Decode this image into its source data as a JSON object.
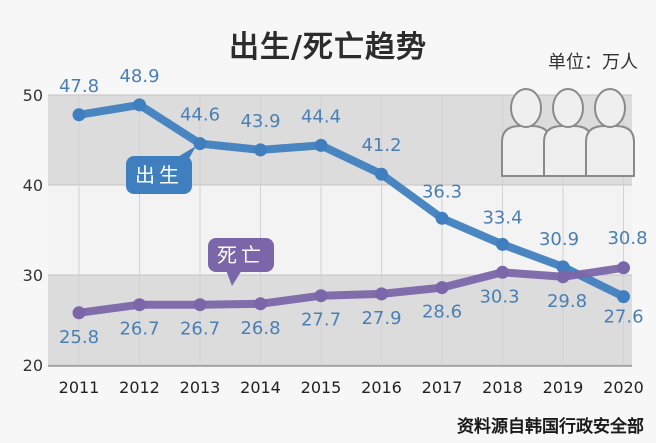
{
  "chart_data": {
    "type": "line",
    "title": "出生/死亡趋势",
    "unit": "单位：万人",
    "source": "资料源自韩国行政安全部",
    "x": [
      "2011",
      "2012",
      "2013",
      "2014",
      "2015",
      "2016",
      "2017",
      "2018",
      "2019",
      "2020"
    ],
    "y_ticks": [
      "20",
      "30",
      "40",
      "50"
    ],
    "ylim": [
      20,
      50
    ],
    "grid": true,
    "series": [
      {
        "name": "出生",
        "color": "#3f7fbf",
        "values": [
          47.8,
          48.9,
          44.6,
          43.9,
          44.4,
          41.2,
          36.3,
          33.4,
          30.9,
          27.6
        ],
        "labels": [
          "47.8",
          "48.9",
          "44.6",
          "43.9",
          "44.4",
          "41.2",
          "36.3",
          "33.4",
          "30.9",
          "27.6"
        ]
      },
      {
        "name": "死亡",
        "color": "#7b66a9",
        "values": [
          25.8,
          26.7,
          26.7,
          26.8,
          27.7,
          27.9,
          28.6,
          30.3,
          29.8,
          30.8
        ],
        "labels": [
          "25.8",
          "26.7",
          "26.7",
          "26.8",
          "27.7",
          "27.9",
          "28.6",
          "30.3",
          "29.8",
          "30.8"
        ]
      }
    ],
    "label_color": "#4a7fb5"
  }
}
